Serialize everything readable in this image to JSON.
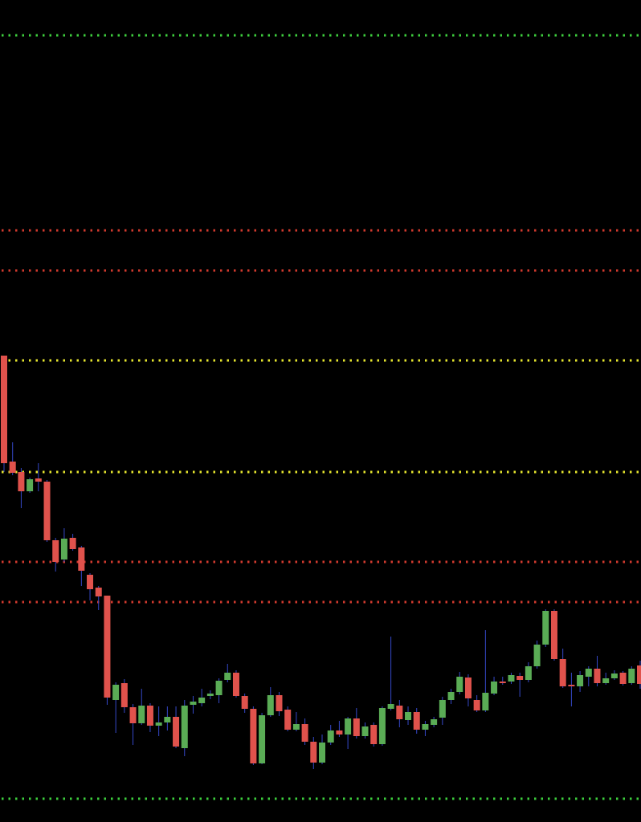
{
  "chart_data": {
    "type": "candlestick",
    "ylim": [
      0,
      1024
    ],
    "background": "#000000",
    "up_color": "#5aac55",
    "down_color": "#e0524c",
    "wick_color": "#3548c8",
    "levels": [
      {
        "value": 980,
        "color": "#3ecf3e"
      },
      {
        "value": 737,
        "color": "#d23a2e"
      },
      {
        "value": 687,
        "color": "#d23a2e"
      },
      {
        "value": 575,
        "color": "#e6e62e"
      },
      {
        "value": 436,
        "color": "#e6e62e"
      },
      {
        "value": 324,
        "color": "#d23a2e"
      },
      {
        "value": 274,
        "color": "#d23a2e"
      },
      {
        "value": 29,
        "color": "#3ecf3e"
      }
    ],
    "categories": [
      null,
      null,
      null,
      null,
      null,
      null,
      null,
      null,
      null,
      null,
      null,
      null,
      null,
      null,
      null,
      null,
      null,
      null,
      null,
      null,
      null,
      null,
      null,
      null,
      null,
      null,
      null,
      null,
      null,
      null,
      null,
      null,
      null,
      null,
      null,
      null,
      null,
      null,
      null,
      null,
      null,
      null,
      null,
      null,
      null,
      null,
      null,
      null,
      null,
      null,
      null,
      null,
      null,
      null,
      null,
      null,
      null,
      null,
      null,
      null,
      null,
      null,
      null,
      null,
      null,
      null,
      null,
      null,
      null,
      null,
      null,
      null,
      null,
      null,
      null
    ],
    "open": [
      581,
      449,
      436,
      412,
      428,
      424,
      351,
      327,
      354,
      342,
      308,
      292,
      282,
      152,
      173,
      143,
      123,
      145,
      120,
      124,
      131,
      92,
      146,
      148,
      157,
      158,
      177,
      186,
      157,
      141,
      73,
      133,
      158,
      140,
      115,
      122,
      100,
      74,
      99,
      114,
      109,
      129,
      107,
      121,
      97,
      141,
      145,
      127,
      137,
      115,
      121,
      130,
      152,
      162,
      180,
      152,
      139,
      160,
      175,
      175,
      182,
      177,
      194,
      221,
      263,
      203,
      171,
      169,
      181,
      191,
      173,
      179,
      186,
      173,
      195
    ],
    "high": [
      581,
      473,
      441,
      429,
      447,
      426,
      354,
      366,
      359,
      344,
      310,
      294,
      282,
      174,
      178,
      147,
      166,
      148,
      144,
      144,
      144,
      152,
      157,
      166,
      164,
      179,
      197,
      189,
      160,
      144,
      136,
      168,
      162,
      144,
      137,
      129,
      106,
      109,
      121,
      126,
      131,
      142,
      124,
      124,
      144,
      231,
      152,
      144,
      142,
      126,
      131,
      156,
      166,
      187,
      184,
      158,
      239,
      181,
      181,
      186,
      186,
      199,
      226,
      265,
      265,
      216,
      186,
      188,
      194,
      207,
      186,
      189,
      188,
      194,
      201
    ],
    "low": [
      436,
      432,
      391,
      410,
      412,
      349,
      312,
      324,
      338,
      294,
      276,
      264,
      146,
      111,
      136,
      96,
      121,
      112,
      107,
      114,
      92,
      82,
      135,
      144,
      153,
      148,
      174,
      155,
      136,
      71,
      72,
      131,
      132,
      113,
      113,
      96,
      66,
      72,
      96,
      106,
      91,
      104,
      104,
      94,
      95,
      139,
      118,
      121,
      110,
      107,
      118,
      121,
      147,
      159,
      144,
      137,
      137,
      158,
      171,
      172,
      156,
      174,
      191,
      218,
      201,
      167,
      144,
      162,
      169,
      169,
      171,
      177,
      170,
      171,
      166
    ],
    "close": [
      447,
      435,
      412,
      427,
      424,
      351,
      324,
      353,
      340,
      313,
      290,
      281,
      155,
      171,
      143,
      123,
      145,
      120,
      124,
      131,
      94,
      145,
      150,
      155,
      160,
      176,
      186,
      157,
      141,
      73,
      133,
      158,
      138,
      115,
      122,
      100,
      74,
      99,
      114,
      109,
      129,
      107,
      119,
      97,
      142,
      147,
      128,
      137,
      115,
      122,
      128,
      152,
      162,
      181,
      154,
      139,
      161,
      175,
      173,
      183,
      177,
      194,
      221,
      263,
      203,
      169,
      169,
      183,
      191,
      173,
      179,
      185,
      172,
      191,
      172
    ]
  }
}
